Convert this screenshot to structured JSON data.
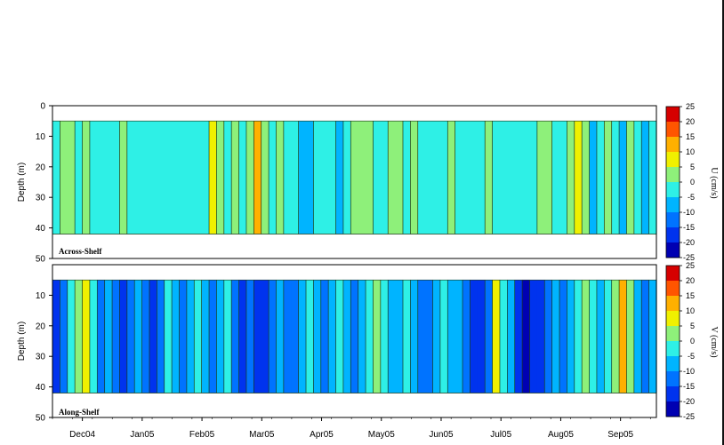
{
  "chart_data": [
    {
      "type": "heatmap",
      "panel_label": "Across-Shelf",
      "ylabel": "Depth (m)",
      "colorbar_label": "U (cm/s)",
      "y_ticks": [
        "0",
        "10",
        "20",
        "30",
        "40",
        "50"
      ],
      "ylim": [
        0,
        50
      ],
      "x_ticks": [
        "Dec04",
        "Jan05",
        "Feb05",
        "Mar05",
        "Apr05",
        "May05",
        "Jun05",
        "Jul05",
        "Aug05",
        "Sep05"
      ],
      "colorbar_ticks": [
        "25",
        "20",
        "15",
        "10",
        "5",
        "0",
        "-5",
        "-10",
        "-15",
        "-20",
        "-25"
      ],
      "data_depth_range": [
        5,
        42
      ],
      "time_profile": [
        0,
        1,
        1,
        0,
        1,
        0,
        0,
        0,
        0,
        1,
        0,
        0,
        0,
        0,
        0,
        0,
        0,
        0,
        0,
        0,
        0,
        2,
        1,
        0,
        1,
        0,
        1,
        3,
        1,
        0,
        1,
        0,
        0,
        -1,
        -1,
        0,
        0,
        0,
        -1,
        0,
        1,
        1,
        1,
        0,
        0,
        1,
        1,
        0,
        1,
        0,
        0,
        0,
        0,
        1,
        0,
        0,
        0,
        0,
        1,
        0,
        0,
        0,
        0,
        0,
        0,
        1,
        1,
        0,
        0,
        1,
        2,
        1,
        -1,
        0,
        1,
        0,
        -1,
        1,
        0,
        -1,
        0
      ]
    },
    {
      "type": "heatmap",
      "panel_label": "Along-Shelf",
      "ylabel": "Depth (m)",
      "colorbar_label": "V (cm/s)",
      "y_ticks": [
        "10",
        "20",
        "30",
        "40",
        "50"
      ],
      "ylim": [
        0,
        50
      ],
      "x_ticks": [
        "Dec04",
        "Jan05",
        "Feb05",
        "Mar05",
        "Apr05",
        "May05",
        "Jun05",
        "Jul05",
        "Aug05",
        "Sep05"
      ],
      "colorbar_ticks": [
        "25",
        "20",
        "15",
        "10",
        "5",
        "0",
        "-5",
        "-10",
        "-15",
        "-20",
        "-25"
      ],
      "data_depth_range": [
        5,
        42
      ],
      "time_profile": [
        -3,
        -2,
        0,
        1,
        2,
        0,
        -2,
        -1,
        -2,
        -3,
        -2,
        -1,
        -2,
        -3,
        -2,
        0,
        -1,
        -2,
        -1,
        0,
        -1,
        -2,
        -1,
        0,
        -2,
        -3,
        -2,
        -3,
        -3,
        -2,
        -1,
        -2,
        -2,
        -1,
        0,
        -1,
        -2,
        -1,
        0,
        -1,
        -2,
        -1,
        0,
        1,
        0,
        -1,
        -1,
        0,
        -1,
        -2,
        -2,
        -1,
        0,
        -1,
        -1,
        -2,
        -3,
        -3,
        -2,
        2,
        0,
        -1,
        -3,
        -4,
        -3,
        -3,
        -2,
        -1,
        -2,
        -1,
        0,
        1,
        0,
        -1,
        0,
        1,
        3,
        1,
        -1,
        -2,
        -1
      ]
    }
  ],
  "colors": {
    "-25": "#00007f",
    "-20": "#0000b2",
    "-15": "#0033ee",
    "-10": "#0073ff",
    "-5": "#00b4ff",
    "0": "#2ef0e6",
    "5": "#8ef07a",
    "10": "#f0f000",
    "15": "#ffb000",
    "20": "#ff5500",
    "25": "#d60000"
  }
}
